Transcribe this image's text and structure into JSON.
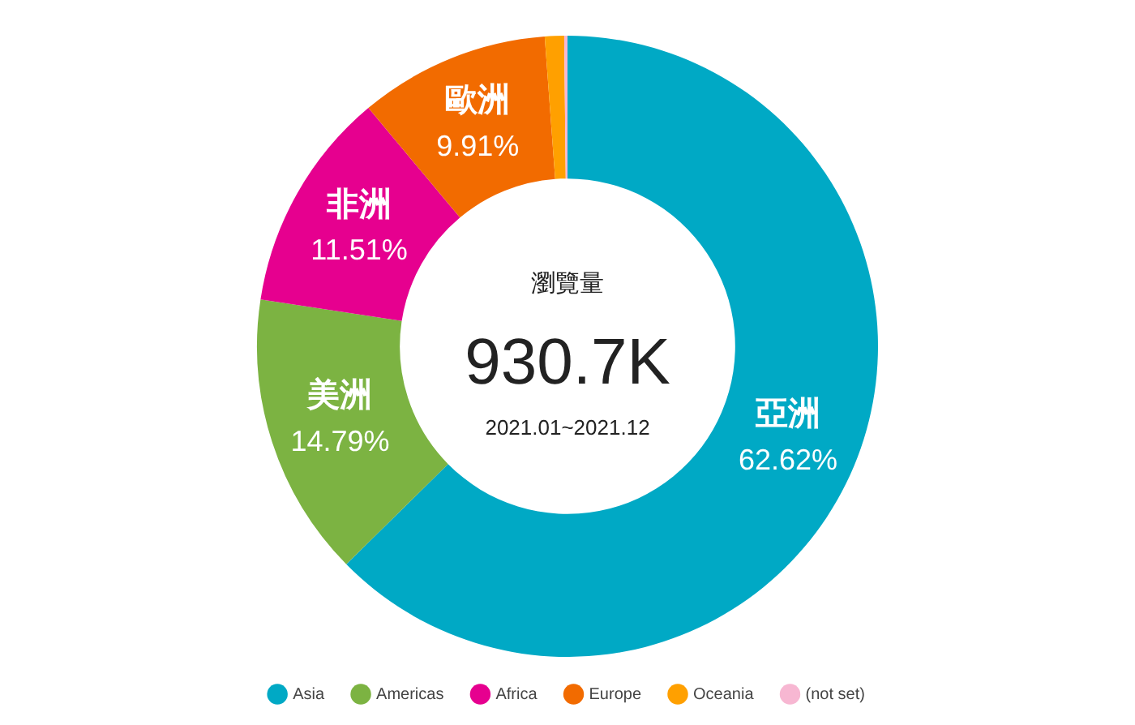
{
  "chart_data": {
    "type": "donut",
    "categories": [
      "Asia",
      "Americas",
      "Africa",
      "Europe",
      "Oceania",
      "(not set)"
    ],
    "values": [
      62.62,
      14.79,
      11.51,
      9.91,
      1.0,
      0.17
    ],
    "colors": [
      "#00a9c5",
      "#7cb342",
      "#e6008f",
      "#f26b00",
      "#ffa000",
      "#f7b7d2"
    ],
    "value_labels": [
      "62.62%",
      "14.79%",
      "11.51%",
      "9.91%",
      null,
      null
    ],
    "annotations": [
      {
        "text": "亞洲",
        "x": "Asia"
      },
      {
        "text": "美洲",
        "x": "Americas"
      },
      {
        "text": "非洲",
        "x": "Africa"
      },
      {
        "text": "歐洲",
        "x": "Europe"
      },
      "瀏覽量",
      "930.7K",
      "2021.01~2021.12"
    ],
    "legend": "bottom"
  }
}
